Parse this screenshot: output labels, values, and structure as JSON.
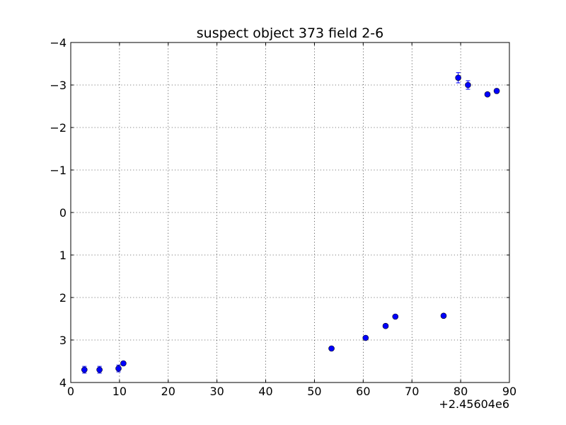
{
  "chart_data": {
    "type": "scatter",
    "title": "suspect object 373 field 2-6",
    "xlabel": "",
    "ylabel": "",
    "x_offset_label": "+2.45604e6",
    "xlim": [
      0,
      90
    ],
    "ylim": [
      4,
      -4
    ],
    "y_inverted": true,
    "grid": true,
    "x_ticks": [
      0,
      10,
      20,
      30,
      40,
      50,
      60,
      70,
      80,
      90
    ],
    "x_tick_labels": [
      "0",
      "10",
      "20",
      "30",
      "40",
      "50",
      "60",
      "70",
      "80",
      "90"
    ],
    "y_ticks": [
      -4,
      -3,
      -2,
      -1,
      0,
      1,
      2,
      3,
      4
    ],
    "y_tick_labels": [
      "−4",
      "−3",
      "−2",
      "−1",
      "0",
      "1",
      "2",
      "3",
      "4"
    ],
    "marker_color": "#0000ff",
    "series": [
      {
        "points": [
          {
            "x": 2.8,
            "y": 3.7,
            "err": 0.08
          },
          {
            "x": 5.9,
            "y": 3.7,
            "err": 0.08
          },
          {
            "x": 9.8,
            "y": 3.67,
            "err": 0.08
          },
          {
            "x": 10.8,
            "y": 3.55,
            "err": 0.04
          },
          {
            "x": 53.5,
            "y": 3.2,
            "err": 0.03
          },
          {
            "x": 60.5,
            "y": 2.95,
            "err": 0.03
          },
          {
            "x": 64.6,
            "y": 2.67,
            "err": 0.03
          },
          {
            "x": 66.6,
            "y": 2.45,
            "err": 0.03
          },
          {
            "x": 76.5,
            "y": 2.43,
            "err": 0.03
          },
          {
            "x": 79.5,
            "y": -3.17,
            "err": 0.12
          },
          {
            "x": 81.5,
            "y": -3.0,
            "err": 0.1
          },
          {
            "x": 85.5,
            "y": -2.78,
            "err": 0.03
          },
          {
            "x": 87.4,
            "y": -2.86,
            "err": 0.05
          }
        ]
      }
    ]
  }
}
